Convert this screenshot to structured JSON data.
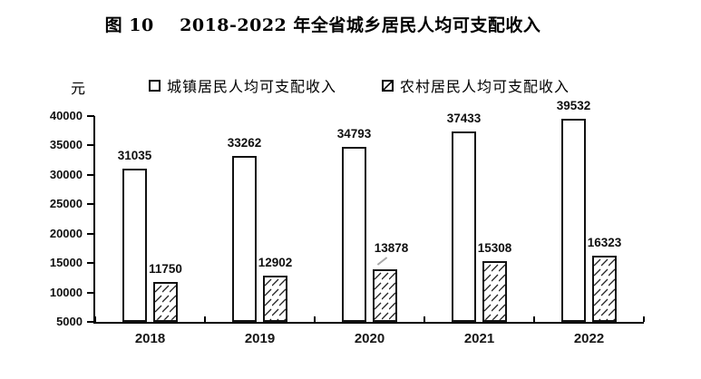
{
  "figure": {
    "title": "图 10    2018-2022 年全省城乡居民人均可支配收入",
    "unit_label": "元"
  },
  "legend": [
    {
      "label": "城镇居民人均可支配收入",
      "marker": "hollow-square"
    },
    {
      "label": "农村居民人均可支配收入",
      "marker": "hatched-square"
    }
  ],
  "chart_data": {
    "type": "bar",
    "title": "图 10 2018-2022 年全省城乡居民人均可支配收入",
    "categories": [
      "2018",
      "2019",
      "2020",
      "2021",
      "2022"
    ],
    "series": [
      {
        "name": "城镇居民人均可支配收入",
        "pattern": "solid-white",
        "values": [
          31035,
          33262,
          34793,
          37433,
          39532
        ]
      },
      {
        "name": "农村居民人均可支配收入",
        "pattern": "diagonal-hatch",
        "values": [
          11750,
          12902,
          13878,
          15308,
          16323
        ]
      }
    ],
    "ylabel": "元",
    "ylim": [
      5000,
      40000
    ],
    "yticks": [
      5000,
      10000,
      15000,
      20000,
      25000,
      30000,
      35000,
      40000
    ],
    "grid": false,
    "legend_position": "top",
    "data_labels": true,
    "colors": {
      "axis": "#000000",
      "bar_fill": "#ffffff",
      "bar_border": "#111111",
      "hatch": "#222222",
      "leader_line": "#a6a6a6"
    },
    "label_adjustments": [
      {
        "series": 1,
        "index": 2,
        "extra_offset": 9,
        "dx": 7,
        "leader_line": true
      }
    ]
  }
}
